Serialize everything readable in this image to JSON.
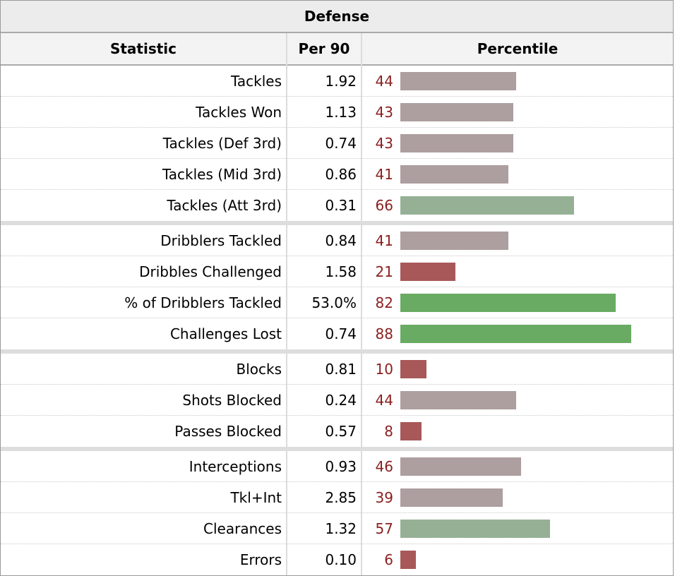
{
  "caption": "Defense",
  "headers": {
    "statistic": "Statistic",
    "per90": "Per 90",
    "percentile": "Percentile"
  },
  "colors": {
    "low": "#a85858",
    "mid": "#ad9e9f",
    "midHigh": "#96b096",
    "high": "#6aab63",
    "pctText": "#8b2020"
  },
  "chart_data": {
    "type": "bar",
    "orientation": "horizontal",
    "title": "Defense",
    "xlim": [
      0,
      100
    ],
    "groups": [
      [
        {
          "stat": "Tackles",
          "per90": "1.92",
          "percentile": 44
        },
        {
          "stat": "Tackles Won",
          "per90": "1.13",
          "percentile": 43
        },
        {
          "stat": "Tackles (Def 3rd)",
          "per90": "0.74",
          "percentile": 43
        },
        {
          "stat": "Tackles (Mid 3rd)",
          "per90": "0.86",
          "percentile": 41
        },
        {
          "stat": "Tackles (Att 3rd)",
          "per90": "0.31",
          "percentile": 66
        }
      ],
      [
        {
          "stat": "Dribblers Tackled",
          "per90": "0.84",
          "percentile": 41
        },
        {
          "stat": "Dribbles Challenged",
          "per90": "1.58",
          "percentile": 21
        },
        {
          "stat": "% of Dribblers Tackled",
          "per90": "53.0%",
          "percentile": 82
        },
        {
          "stat": "Challenges Lost",
          "per90": "0.74",
          "percentile": 88
        }
      ],
      [
        {
          "stat": "Blocks",
          "per90": "0.81",
          "percentile": 10
        },
        {
          "stat": "Shots Blocked",
          "per90": "0.24",
          "percentile": 44
        },
        {
          "stat": "Passes Blocked",
          "per90": "0.57",
          "percentile": 8
        }
      ],
      [
        {
          "stat": "Interceptions",
          "per90": "0.93",
          "percentile": 46
        },
        {
          "stat": "Tkl+Int",
          "per90": "2.85",
          "percentile": 39
        },
        {
          "stat": "Clearances",
          "per90": "1.32",
          "percentile": 57
        },
        {
          "stat": "Errors",
          "per90": "0.10",
          "percentile": 6
        }
      ]
    ]
  }
}
